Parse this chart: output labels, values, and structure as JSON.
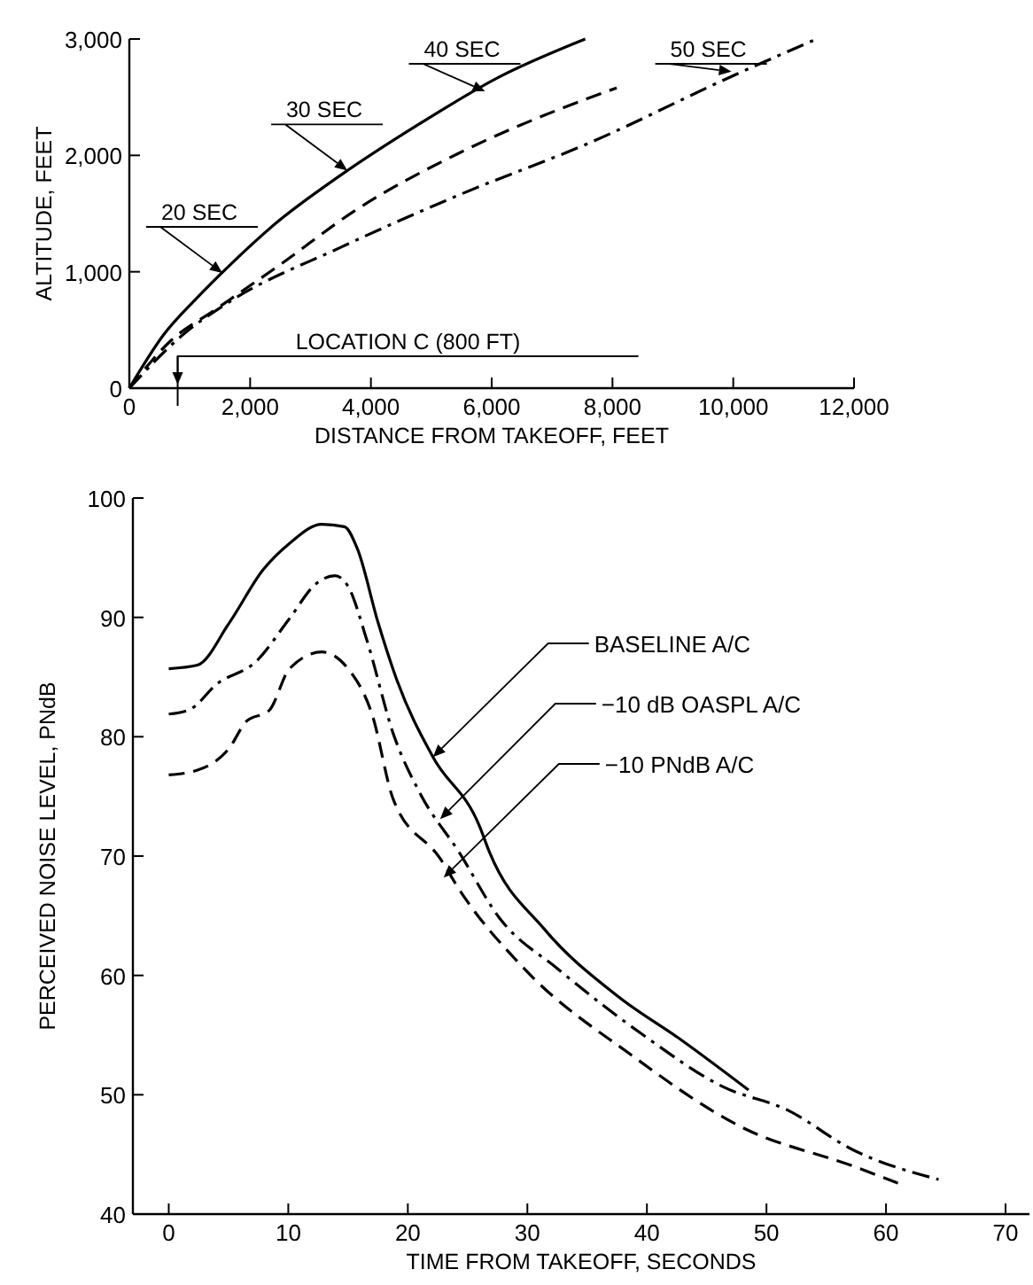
{
  "chart_data": [
    {
      "type": "line",
      "xlabel": "DISTANCE FROM TAKEOFF, FEET",
      "ylabel": "ALTITUDE, FEET",
      "xlim": [
        0,
        12000
      ],
      "ylim": [
        0,
        3000
      ],
      "xticks": [
        0,
        {
          "value": 2000,
          "label": "2,000"
        },
        {
          "value": 4000,
          "label": "4,000"
        },
        {
          "value": 6000,
          "label": "6,000"
        },
        {
          "value": 8000,
          "label": "8,000"
        },
        {
          "value": 10000,
          "label": "10,000"
        },
        {
          "value": 12000,
          "label": "12,000"
        }
      ],
      "yticks": [
        0,
        {
          "value": 1000,
          "label": "1,000"
        },
        {
          "value": 2000,
          "label": "2,000"
        },
        {
          "value": 3000,
          "label": "3,000"
        }
      ],
      "grid": false,
      "series": [
        {
          "color": "#000000",
          "line_style": "solid",
          "x": [
            0,
            570,
            1110,
            1650,
            2410,
            3500,
            4800,
            6110,
            7550
          ],
          "values": [
            0,
            460,
            770,
            1050,
            1410,
            1830,
            2270,
            2670,
            3000
          ]
        },
        {
          "color": "#000000",
          "line_style": "dashed",
          "x": [
            0,
            670,
            1440,
            2520,
            3720,
            5460,
            7090,
            8070
          ],
          "values": [
            0,
            400,
            680,
            1070,
            1520,
            2020,
            2390,
            2580
          ]
        },
        {
          "color": "#000000",
          "line_style": "dashdot",
          "x": [
            0,
            890,
            1650,
            3500,
            5460,
            7630,
            10020,
            11380
          ],
          "values": [
            0,
            460,
            740,
            1210,
            1660,
            2110,
            2690,
            3000
          ]
        }
      ],
      "annotations": [
        {
          "text": "20 SEC",
          "x": 1540,
          "y": 990
        },
        {
          "text": "30 SEC",
          "x": 3610,
          "y": 1870
        },
        {
          "text": "40 SEC",
          "x": 5890,
          "y": 2550
        },
        {
          "text": "50 SEC",
          "x": 9970,
          "y": 2720
        }
      ],
      "ref_lines": [
        {
          "axis": "x",
          "value": 800,
          "label": "LOCATION C (800 FT)"
        }
      ]
    },
    {
      "type": "line",
      "xlabel": "TIME FROM TAKEOFF, SECONDS",
      "ylabel": "PERCEIVED NOISE LEVEL, PNdB",
      "xlim": [
        -3,
        72
      ],
      "ylim": [
        40,
        100
      ],
      "xticks": [
        0,
        10,
        20,
        30,
        40,
        50,
        60,
        70
      ],
      "yticks": [
        40,
        50,
        60,
        70,
        80,
        90,
        100
      ],
      "grid": false,
      "series": [
        {
          "color": "#000000",
          "line_style": "solid",
          "x": [
            0,
            2.4,
            5.1,
            7.9,
            10.1,
            12.8,
            14.7,
            15.8,
            17.5,
            19.1,
            22.1,
            26,
            26.8,
            31.4,
            37.5,
            43,
            48.5
          ],
          "values": [
            85.7,
            86,
            89.6,
            94,
            96.2,
            97.8,
            97.6,
            95.7,
            89.6,
            84.7,
            78.3,
            72.5,
            70.4,
            63.9,
            58.3,
            54.5,
            50.4
          ]
        },
        {
          "color": "#000000",
          "line_style": "dashdot",
          "x": [
            0,
            1.8,
            4,
            7.3,
            10.1,
            12.3,
            13.9,
            15,
            16.6,
            18.8,
            21,
            24.3,
            27.6,
            32.6,
            39.7,
            46.3,
            51.8,
            57.2,
            64.4
          ],
          "values": [
            81.9,
            82.3,
            84.4,
            86.3,
            89.9,
            92.8,
            93.5,
            92.6,
            88,
            80.2,
            75.3,
            70.3,
            64.9,
            60.5,
            55,
            50.7,
            48.7,
            45.4,
            42.9
          ]
        },
        {
          "color": "#000000",
          "line_style": "dashed",
          "x": [
            0,
            2.4,
            5.1,
            6.5,
            8.4,
            10.1,
            12.8,
            15,
            17,
            18.8,
            22.7,
            24.3,
            29.8,
            38.6,
            47.9,
            57.3,
            61
          ],
          "values": [
            76.8,
            77.2,
            79.1,
            81.3,
            82.2,
            85.7,
            87.1,
            85.7,
            81.9,
            74.7,
            69.8,
            67.2,
            60.5,
            53.4,
            47.3,
            44,
            42.6
          ]
        }
      ],
      "annotations": [
        {
          "text": "BASELINE A/C",
          "x": 22.1,
          "y": 78.3
        },
        {
          "text": "−10 dB OASPL A/C",
          "x": 22.7,
          "y": 73.1
        },
        {
          "text": "−10 PNdB A/C",
          "x": 23,
          "y": 68.2
        }
      ]
    }
  ]
}
